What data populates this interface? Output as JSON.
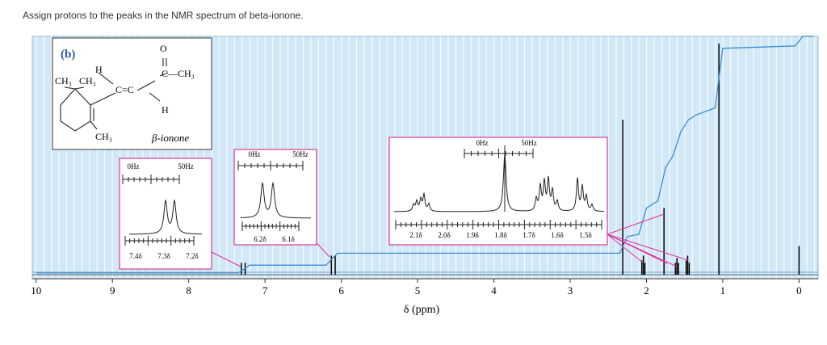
{
  "chart_data": {
    "type": "nmr",
    "title": "Assign protons to the peaks in the NMR spectrum of beta-ionone.",
    "xlabel": "δ (ppm)",
    "xlim": [
      10.05,
      -0.25
    ],
    "xticks": [
      10,
      9,
      8,
      7,
      6,
      5,
      4,
      3,
      2,
      1,
      0
    ],
    "ylim": [
      0,
      100
    ],
    "series": [
      {
        "color": "#000000",
        "style": "stick",
        "x": [
          7.31,
          7.26,
          6.13,
          6.08,
          2.31,
          2.06,
          2.04,
          2.02,
          1.77,
          1.62,
          1.6,
          1.58,
          1.48,
          1.46,
          1.44,
          1.05,
          0
        ],
        "values": [
          5,
          5,
          8,
          8,
          65,
          6,
          8,
          5,
          28,
          5,
          7,
          5,
          6,
          8,
          5,
          97,
          12
        ]
      },
      {
        "color": "#3a8fd0",
        "style": "line",
        "x": [
          10,
          7.35,
          7.2,
          6.2,
          6.05,
          2.35,
          2.25,
          2.1,
          2.0,
          1.85,
          1.75,
          1.65,
          1.55,
          1.45,
          1.35,
          1.1,
          1.0,
          0.05,
          -0.05,
          -0.2
        ],
        "values": [
          0.7,
          0.7,
          4,
          4,
          9,
          9,
          16,
          17,
          28,
          31,
          45,
          50,
          60,
          65,
          67,
          70,
          95,
          96,
          100,
          100
        ]
      }
    ],
    "panel_label": "(b)",
    "compound": "β-ionone",
    "structure_labels": [
      "CH₃",
      "CH₃",
      "H",
      "C=C",
      "H",
      "O",
      "C—CH₃",
      "CH₃"
    ],
    "insets": [
      {
        "labels": [
          "0Hz",
          "50Hz"
        ],
        "axis_labels": [
          "7.4δ",
          "7.3δ",
          "7.2δ"
        ]
      },
      {
        "labels": [
          "0Hz",
          "50Hz"
        ],
        "axis_labels": [
          "6.2δ",
          "6.1δ"
        ]
      },
      {
        "labels": [
          "0Hz",
          "50Hz"
        ],
        "axis_labels": [
          "2.1δ",
          "2.0δ",
          "1.9δ",
          "1.8δ",
          "1.7δ",
          "1.6δ",
          "1.5δ"
        ]
      }
    ]
  }
}
